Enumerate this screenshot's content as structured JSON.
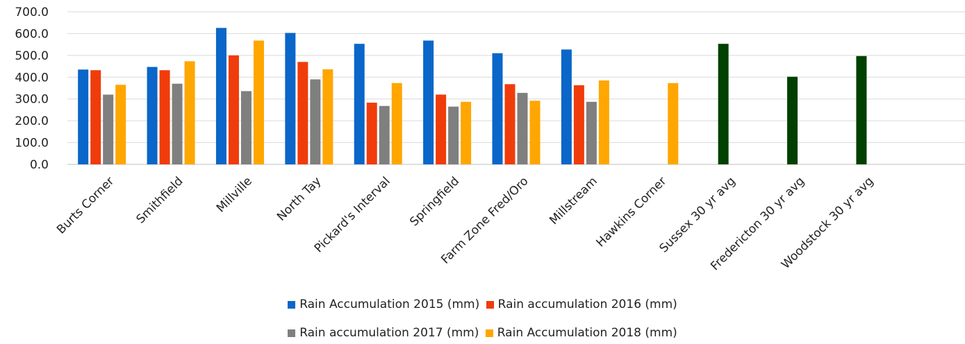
{
  "chart_data": {
    "type": "bar",
    "categories": [
      "Burts Corner",
      "Smithfield",
      "Millville",
      "North Tay",
      "Pickard's Interval",
      "Springfield",
      "Farm Zone Fred/Oro",
      "Millstream",
      "Hawkins Corner",
      "Sussex 30 yr avg",
      "Fredericton 30 yr avg",
      "Woodstock 30 yr avg"
    ],
    "series": [
      {
        "name": "Rain Accumulation 2015 (mm)",
        "color": "#0a66c8",
        "values": [
          435,
          447,
          626,
          603,
          553,
          568,
          510,
          527,
          null,
          null,
          null,
          null
        ]
      },
      {
        "name": "Rain accumulation 2016 (mm)",
        "color": "#f03c0a",
        "values": [
          432,
          432,
          500,
          470,
          283,
          320,
          368,
          363,
          null,
          null,
          null,
          null
        ]
      },
      {
        "name": "Rain accumulation 2017 (mm)",
        "color": "#7f7f7f",
        "values": [
          320,
          370,
          336,
          390,
          268,
          265,
          328,
          287,
          null,
          null,
          null,
          null
        ]
      },
      {
        "name": "Rain Accumulation 2018 (mm)",
        "color": "#ffa600",
        "values": [
          365,
          473,
          568,
          436,
          373,
          287,
          292,
          385,
          373,
          null,
          null,
          null
        ]
      }
    ],
    "avg_bars": {
      "color": "#004000",
      "values": [
        null,
        null,
        null,
        null,
        null,
        null,
        null,
        null,
        null,
        553,
        402,
        497
      ]
    },
    "ylim": [
      0,
      700
    ],
    "yticks": [
      "0.0",
      "100.0",
      "200.0",
      "300.0",
      "400.0",
      "500.0",
      "600.0",
      "700.0"
    ],
    "grid": true,
    "legend_position": "bottom"
  },
  "legend": {
    "row1": [
      {
        "label": "Rain Accumulation 2015 (mm)",
        "color": "#0a66c8"
      },
      {
        "label": "Rain accumulation 2016 (mm)",
        "color": "#f03c0a"
      }
    ],
    "row2": [
      {
        "label": "Rain accumulation 2017 (mm)",
        "color": "#7f7f7f"
      },
      {
        "label": "Rain Accumulation 2018 (mm)",
        "color": "#ffa600"
      }
    ]
  }
}
